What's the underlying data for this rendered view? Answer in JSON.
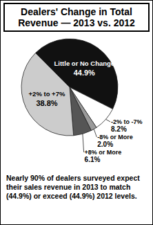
{
  "chart_data": {
    "type": "pie",
    "title": "Dealers' Change in Total Revenue — 2013 vs. 2012",
    "categories": [
      "Little or No Change",
      "-2% to -7%",
      "-8% or More",
      "+8% or More",
      "+2% to +7%"
    ],
    "values": [
      44.9,
      8.2,
      2.0,
      6.1,
      38.8
    ],
    "value_labels": [
      "44.9%",
      "8.2%",
      "2.0%",
      "6.1%",
      "38.8%"
    ],
    "colors": [
      "#111111",
      "#ffffff",
      "#9a9a9a",
      "#555555",
      "#cccccc"
    ],
    "data_labels": true,
    "caption": "Nearly 90% of dealers surveyed expect their sales revenue in 2013 to match (44.9%) or exceed (44.9%) 2012 levels."
  }
}
